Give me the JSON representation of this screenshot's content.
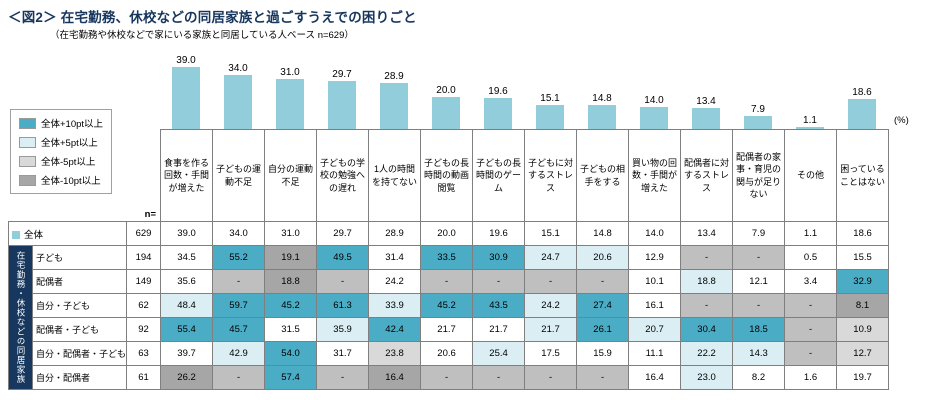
{
  "title": "＜図2＞ 在宅勤務、休校などの同居家族と過ごすうえでの困りごと",
  "subtitle": "（在宅勤務や休校などで家にいる家族と同居している人ベース n=629）",
  "percent_label": "(%)",
  "n_label": "n=",
  "side_label": "在宅勤務・休校などの同居家族",
  "legend": [
    {
      "label": "全体+10pt以上",
      "color": "#4BACC6"
    },
    {
      "label": "全体+5pt以上",
      "color": "#DAEEF3"
    },
    {
      "label": "全体-5pt以上",
      "color": "#D9D9D9"
    },
    {
      "label": "全体-10pt以上",
      "color": "#A6A6A6"
    }
  ],
  "colors": {
    "bar": "#92CDDC",
    "plus10": "#4BACC6",
    "plus5": "#DAEEF3",
    "minus5": "#D9D9D9",
    "minus10": "#A6A6A6",
    "sidebar": "#17375E"
  },
  "chart_data": {
    "type": "bar",
    "title": "＜図2＞ 在宅勤務、休校などの同居家族と過ごすうえでの困りごと",
    "ylabel": "(%)",
    "ylim": [
      0,
      45
    ],
    "categories": [
      "食事を作る回数・手間が増えた",
      "子どもの運動不足",
      "自分の運動不足",
      "子どもの学校の勉強への遅れ",
      "1人の時間を持てない",
      "子どもの長時間の動画閲覧",
      "子どもの長時間のゲーム",
      "子どもに対するストレス",
      "子どもの相手をする",
      "買い物の回数・手間が増えた",
      "配偶者に対するストレス",
      "配偶者の家事・育児の関与が足りない",
      "その他",
      "困っていることはない"
    ],
    "bar_values": [
      "39.0",
      "34.0",
      "31.0",
      "29.7",
      "28.9",
      "20.0",
      "19.6",
      "15.1",
      "14.8",
      "14.0",
      "13.4",
      "7.9",
      "1.1",
      "18.6"
    ],
    "rows": [
      {
        "label": "全体",
        "n": "629",
        "values": [
          "39.0",
          "34.0",
          "31.0",
          "29.7",
          "28.9",
          "20.0",
          "19.6",
          "15.1",
          "14.8",
          "14.0",
          "13.4",
          "7.9",
          "1.1",
          "18.6"
        ]
      },
      {
        "label": "子ども",
        "n": "194",
        "values": [
          "34.5",
          "55.2",
          "19.1",
          "49.5",
          "31.4",
          "33.5",
          "30.9",
          "24.7",
          "20.6",
          "12.9",
          "-",
          "-",
          "0.5",
          "15.5"
        ]
      },
      {
        "label": "配偶者",
        "n": "149",
        "values": [
          "35.6",
          "-",
          "18.8",
          "-",
          "24.2",
          "-",
          "-",
          "-",
          "-",
          "10.1",
          "18.8",
          "12.1",
          "3.4",
          "32.9"
        ]
      },
      {
        "label": "自分・子ども",
        "n": "62",
        "values": [
          "48.4",
          "59.7",
          "45.2",
          "61.3",
          "33.9",
          "45.2",
          "43.5",
          "24.2",
          "27.4",
          "16.1",
          "-",
          "-",
          "-",
          "8.1"
        ]
      },
      {
        "label": "配偶者・子ども",
        "n": "92",
        "values": [
          "55.4",
          "45.7",
          "31.5",
          "35.9",
          "42.4",
          "21.7",
          "21.7",
          "21.7",
          "26.1",
          "20.7",
          "30.4",
          "18.5",
          "-",
          "10.9"
        ]
      },
      {
        "label": "自分・配偶者・子ども",
        "n": "63",
        "values": [
          "39.7",
          "42.9",
          "54.0",
          "31.7",
          "23.8",
          "20.6",
          "25.4",
          "17.5",
          "15.9",
          "11.1",
          "22.2",
          "14.3",
          "-",
          "12.7"
        ]
      },
      {
        "label": "自分・配偶者",
        "n": "61",
        "values": [
          "26.2",
          "-",
          "57.4",
          "-",
          "16.4",
          "-",
          "-",
          "-",
          "-",
          "16.4",
          "23.0",
          "8.2",
          "1.6",
          "19.7"
        ]
      }
    ],
    "highlight_rule": "cell vs 全体: >=+10pt teal, >=+5pt light-blue, <=-5pt light-gray, <=-10pt dark-gray"
  }
}
